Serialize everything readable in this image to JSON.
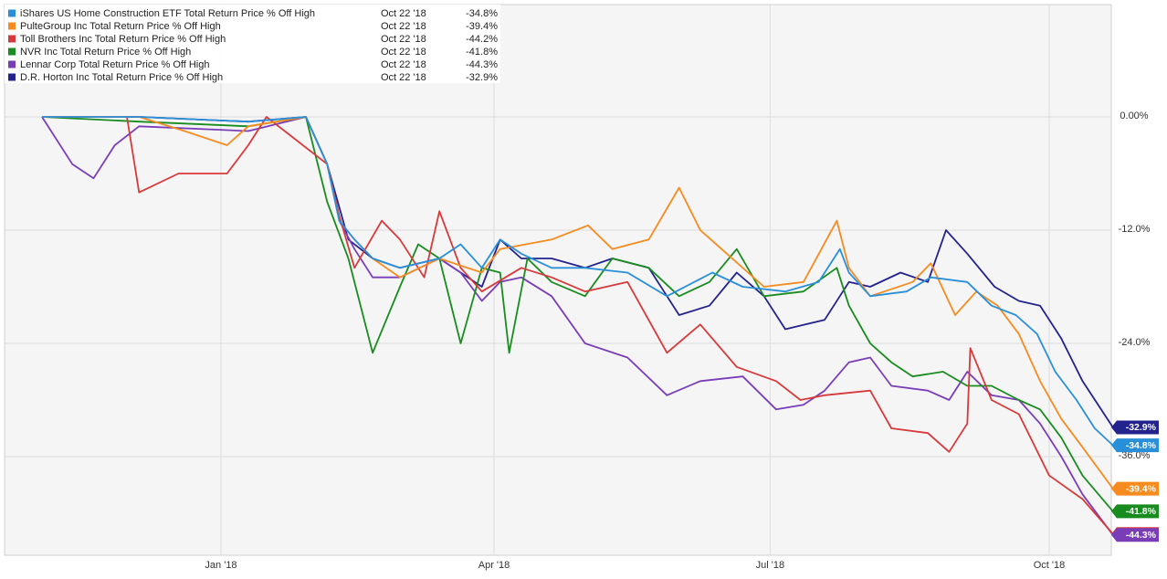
{
  "chart_data": {
    "type": "line",
    "title": "",
    "xlabel": "",
    "ylabel": "",
    "x_range": [
      "2017-11-03",
      "2018-10-22"
    ],
    "ylim": [
      -46,
      0
    ],
    "grid": true,
    "legend_position": "top-left",
    "x_ticks": [
      {
        "date": "2018-01-01",
        "label": "Jan '18"
      },
      {
        "date": "2018-04-01",
        "label": "Apr '18"
      },
      {
        "date": "2018-07-01",
        "label": "Jul '18"
      },
      {
        "date": "2018-10-01",
        "label": "Oct '18"
      }
    ],
    "y_ticks": [
      {
        "value": 0,
        "label": "0.00%"
      },
      {
        "value": -12,
        "label": "-12.0%"
      },
      {
        "value": -24,
        "label": "-24.0%"
      },
      {
        "value": -36,
        "label": "-36.0%"
      }
    ],
    "series": [
      {
        "name": "iShares US Home Construction ETF Total Return Price % Off High",
        "legend_date": "Oct 22 '18",
        "legend_value": "-34.8%",
        "end_label": "-34.8%",
        "color": "#2a8fd9",
        "points": [
          [
            "2017-11-03",
            0
          ],
          [
            "2017-12-05",
            0
          ],
          [
            "2018-01-10",
            -0.5
          ],
          [
            "2018-01-29",
            0
          ],
          [
            "2018-02-05",
            -5
          ],
          [
            "2018-02-09",
            -11
          ],
          [
            "2018-02-14",
            -13
          ],
          [
            "2018-02-20",
            -15
          ],
          [
            "2018-03-01",
            -16
          ],
          [
            "2018-03-14",
            -15
          ],
          [
            "2018-03-21",
            -13.5
          ],
          [
            "2018-03-28",
            -16
          ],
          [
            "2018-04-03",
            -13
          ],
          [
            "2018-04-10",
            -14.5
          ],
          [
            "2018-04-20",
            -16
          ],
          [
            "2018-05-01",
            -16
          ],
          [
            "2018-05-15",
            -16.5
          ],
          [
            "2018-05-28",
            -19
          ],
          [
            "2018-06-12",
            -16.5
          ],
          [
            "2018-06-22",
            -18
          ],
          [
            "2018-07-06",
            -18.5
          ],
          [
            "2018-07-17",
            -17.5
          ],
          [
            "2018-07-24",
            -14
          ],
          [
            "2018-07-27",
            -16.5
          ],
          [
            "2018-08-03",
            -19
          ],
          [
            "2018-08-15",
            -18.5
          ],
          [
            "2018-08-23",
            -17
          ],
          [
            "2018-09-04",
            -17.5
          ],
          [
            "2018-09-12",
            -20
          ],
          [
            "2018-09-20",
            -21
          ],
          [
            "2018-09-27",
            -23
          ],
          [
            "2018-10-03",
            -27
          ],
          [
            "2018-10-10",
            -30
          ],
          [
            "2018-10-16",
            -33
          ],
          [
            "2018-10-22",
            -34.8
          ]
        ]
      },
      {
        "name": "PulteGroup Inc Total Return Price % Off High",
        "legend_date": "Oct 22 '18",
        "legend_value": "-39.4%",
        "end_label": "-39.4%",
        "color": "#f68b1f",
        "points": [
          [
            "2017-11-03",
            0
          ],
          [
            "2017-12-05",
            0
          ],
          [
            "2017-12-20",
            -1.5
          ],
          [
            "2018-01-03",
            -3
          ],
          [
            "2018-01-10",
            -1
          ],
          [
            "2018-01-29",
            0
          ],
          [
            "2018-02-05",
            -5
          ],
          [
            "2018-02-09",
            -11
          ],
          [
            "2018-02-14",
            -13
          ],
          [
            "2018-02-20",
            -15
          ],
          [
            "2018-03-01",
            -17
          ],
          [
            "2018-03-14",
            -15
          ],
          [
            "2018-03-28",
            -16.5
          ],
          [
            "2018-04-03",
            -14
          ],
          [
            "2018-04-20",
            -13
          ],
          [
            "2018-05-02",
            -11.5
          ],
          [
            "2018-05-10",
            -14
          ],
          [
            "2018-05-22",
            -13
          ],
          [
            "2018-06-01",
            -7.5
          ],
          [
            "2018-06-08",
            -12
          ],
          [
            "2018-06-15",
            -14
          ],
          [
            "2018-06-29",
            -18
          ],
          [
            "2018-07-12",
            -17.5
          ],
          [
            "2018-07-23",
            -11
          ],
          [
            "2018-07-27",
            -16
          ],
          [
            "2018-08-03",
            -19
          ],
          [
            "2018-08-17",
            -17.5
          ],
          [
            "2018-08-23",
            -15.5
          ],
          [
            "2018-08-31",
            -21
          ],
          [
            "2018-09-07",
            -18.5
          ],
          [
            "2018-09-14",
            -20
          ],
          [
            "2018-09-21",
            -23
          ],
          [
            "2018-09-28",
            -28
          ],
          [
            "2018-10-05",
            -32
          ],
          [
            "2018-10-12",
            -35
          ],
          [
            "2018-10-22",
            -39.4
          ]
        ]
      },
      {
        "name": "Toll Brothers Inc Total Return Price % Off High",
        "legend_date": "Oct 22 '18",
        "legend_value": "-44.2%",
        "end_label": "-44.2%",
        "color": "#d8393b",
        "points": [
          [
            "2017-11-03",
            0
          ],
          [
            "2017-12-01",
            0
          ],
          [
            "2017-12-05",
            -8
          ],
          [
            "2017-12-18",
            -6
          ],
          [
            "2018-01-03",
            -6
          ],
          [
            "2018-01-10",
            -3
          ],
          [
            "2018-01-16",
            0
          ],
          [
            "2018-02-05",
            -5
          ],
          [
            "2018-02-09",
            -10.5
          ],
          [
            "2018-02-14",
            -16
          ],
          [
            "2018-02-23",
            -11
          ],
          [
            "2018-03-01",
            -13
          ],
          [
            "2018-03-09",
            -17
          ],
          [
            "2018-03-14",
            -10
          ],
          [
            "2018-03-21",
            -16
          ],
          [
            "2018-03-28",
            -18.5
          ],
          [
            "2018-04-10",
            -16
          ],
          [
            "2018-04-20",
            -17
          ],
          [
            "2018-05-01",
            -18.5
          ],
          [
            "2018-05-15",
            -17.5
          ],
          [
            "2018-05-28",
            -25
          ],
          [
            "2018-06-08",
            -22
          ],
          [
            "2018-06-20",
            -26.5
          ],
          [
            "2018-07-03",
            -28
          ],
          [
            "2018-07-11",
            -30
          ],
          [
            "2018-07-19",
            -29.5
          ],
          [
            "2018-08-03",
            -29
          ],
          [
            "2018-08-10",
            -33
          ],
          [
            "2018-08-22",
            -33.5
          ],
          [
            "2018-08-29",
            -35.5
          ],
          [
            "2018-09-04",
            -32.5
          ],
          [
            "2018-09-05",
            -24.5
          ],
          [
            "2018-09-12",
            -30
          ],
          [
            "2018-09-21",
            -31.5
          ],
          [
            "2018-10-01",
            -38
          ],
          [
            "2018-10-12",
            -40.5
          ],
          [
            "2018-10-22",
            -44.2
          ]
        ]
      },
      {
        "name": "NVR Inc Total Return Price % Off High",
        "legend_date": "Oct 22 '18",
        "legend_value": "-41.8%",
        "end_label": "-41.8%",
        "color": "#198c1f",
        "points": [
          [
            "2017-11-03",
            0
          ],
          [
            "2017-12-05",
            -0.5
          ],
          [
            "2018-01-10",
            -1
          ],
          [
            "2018-01-29",
            0
          ],
          [
            "2018-02-05",
            -9
          ],
          [
            "2018-02-12",
            -15
          ],
          [
            "2018-02-20",
            -25
          ],
          [
            "2018-03-01",
            -18
          ],
          [
            "2018-03-07",
            -13.5
          ],
          [
            "2018-03-14",
            -15
          ],
          [
            "2018-03-21",
            -24
          ],
          [
            "2018-03-28",
            -16
          ],
          [
            "2018-04-03",
            -16.5
          ],
          [
            "2018-04-06",
            -25
          ],
          [
            "2018-04-12",
            -15
          ],
          [
            "2018-04-20",
            -17.5
          ],
          [
            "2018-05-01",
            -19
          ],
          [
            "2018-05-10",
            -15
          ],
          [
            "2018-05-22",
            -16
          ],
          [
            "2018-06-01",
            -19
          ],
          [
            "2018-06-11",
            -17.5
          ],
          [
            "2018-06-20",
            -14
          ],
          [
            "2018-06-29",
            -19
          ],
          [
            "2018-07-12",
            -18.5
          ],
          [
            "2018-07-23",
            -16
          ],
          [
            "2018-07-27",
            -20
          ],
          [
            "2018-08-03",
            -24
          ],
          [
            "2018-08-10",
            -26
          ],
          [
            "2018-08-17",
            -27.5
          ],
          [
            "2018-08-27",
            -27
          ],
          [
            "2018-09-04",
            -28.5
          ],
          [
            "2018-09-12",
            -28.5
          ],
          [
            "2018-09-21",
            -30
          ],
          [
            "2018-09-28",
            -31
          ],
          [
            "2018-10-05",
            -34
          ],
          [
            "2018-10-12",
            -38
          ],
          [
            "2018-10-22",
            -41.8
          ]
        ]
      },
      {
        "name": "Lennar Corp Total Return Price % Off High",
        "legend_date": "Oct 22 '18",
        "legend_value": "-44.3%",
        "end_label": "-44.3%",
        "color": "#7a3db8",
        "points": [
          [
            "2017-11-03",
            0
          ],
          [
            "2017-11-13",
            -5
          ],
          [
            "2017-11-20",
            -6.5
          ],
          [
            "2017-11-27",
            -3
          ],
          [
            "2017-12-05",
            -1
          ],
          [
            "2018-01-10",
            -1.5
          ],
          [
            "2018-01-29",
            0
          ],
          [
            "2018-02-05",
            -5
          ],
          [
            "2018-02-09",
            -11
          ],
          [
            "2018-02-14",
            -14
          ],
          [
            "2018-02-20",
            -17
          ],
          [
            "2018-03-01",
            -17
          ],
          [
            "2018-03-14",
            -15
          ],
          [
            "2018-03-21",
            -16.5
          ],
          [
            "2018-03-28",
            -19.5
          ],
          [
            "2018-04-03",
            -17.5
          ],
          [
            "2018-04-10",
            -17
          ],
          [
            "2018-04-20",
            -19
          ],
          [
            "2018-05-01",
            -24
          ],
          [
            "2018-05-15",
            -25.5
          ],
          [
            "2018-05-28",
            -29.5
          ],
          [
            "2018-06-08",
            -28
          ],
          [
            "2018-06-22",
            -27.5
          ],
          [
            "2018-07-03",
            -31
          ],
          [
            "2018-07-12",
            -30.5
          ],
          [
            "2018-07-19",
            -29
          ],
          [
            "2018-07-27",
            -26
          ],
          [
            "2018-08-03",
            -25.5
          ],
          [
            "2018-08-10",
            -28.5
          ],
          [
            "2018-08-22",
            -29
          ],
          [
            "2018-08-29",
            -30
          ],
          [
            "2018-09-04",
            -27
          ],
          [
            "2018-09-12",
            -29.5
          ],
          [
            "2018-09-21",
            -30
          ],
          [
            "2018-09-28",
            -32.5
          ],
          [
            "2018-10-05",
            -36
          ],
          [
            "2018-10-12",
            -40
          ],
          [
            "2018-10-22",
            -44.3
          ]
        ]
      },
      {
        "name": "D.R. Horton Inc Total Return Price % Off High",
        "legend_date": "Oct 22 '18",
        "legend_value": "-32.9%",
        "end_label": "-32.9%",
        "color": "#23238e",
        "points": [
          [
            "2017-11-03",
            0
          ],
          [
            "2017-12-05",
            0
          ],
          [
            "2018-01-10",
            -0.5
          ],
          [
            "2018-01-29",
            0
          ],
          [
            "2018-02-05",
            -5
          ],
          [
            "2018-02-12",
            -13
          ],
          [
            "2018-02-20",
            -15
          ],
          [
            "2018-03-01",
            -16
          ],
          [
            "2018-03-14",
            -15
          ],
          [
            "2018-03-21",
            -16.5
          ],
          [
            "2018-03-28",
            -18
          ],
          [
            "2018-04-03",
            -13
          ],
          [
            "2018-04-10",
            -15
          ],
          [
            "2018-04-20",
            -15
          ],
          [
            "2018-05-01",
            -16
          ],
          [
            "2018-05-10",
            -15
          ],
          [
            "2018-05-22",
            -16
          ],
          [
            "2018-06-01",
            -21
          ],
          [
            "2018-06-11",
            -20
          ],
          [
            "2018-06-20",
            -16.5
          ],
          [
            "2018-06-29",
            -19
          ],
          [
            "2018-07-06",
            -22.5
          ],
          [
            "2018-07-19",
            -21.5
          ],
          [
            "2018-07-27",
            -17.5
          ],
          [
            "2018-08-03",
            -18
          ],
          [
            "2018-08-13",
            -16.5
          ],
          [
            "2018-08-22",
            -17.5
          ],
          [
            "2018-08-28",
            -12
          ],
          [
            "2018-09-04",
            -14.5
          ],
          [
            "2018-09-13",
            -18
          ],
          [
            "2018-09-21",
            -19.5
          ],
          [
            "2018-09-28",
            -20
          ],
          [
            "2018-10-05",
            -23.5
          ],
          [
            "2018-10-12",
            -28
          ],
          [
            "2018-10-22",
            -32.9
          ]
        ]
      }
    ]
  }
}
